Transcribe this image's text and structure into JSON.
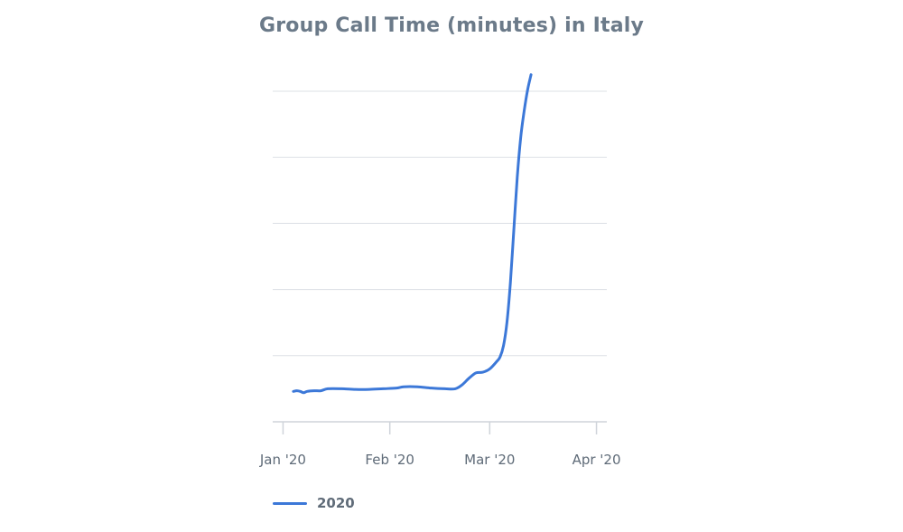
{
  "chart_data": {
    "type": "line",
    "title": "Group Call Time (minutes) in Italy",
    "xlabel": "",
    "ylabel": "",
    "x_axis_type": "date",
    "x_ticks": [
      {
        "label": "Jan '20",
        "date": "2020-01-01"
      },
      {
        "label": "Feb '20",
        "date": "2020-02-01"
      },
      {
        "label": "Mar '20",
        "date": "2020-03-01"
      },
      {
        "label": "Apr '20",
        "date": "2020-04-01"
      }
    ],
    "xlim": [
      "2019-12-29",
      "2020-04-04"
    ],
    "ylim": [
      0,
      5
    ],
    "y_gridlines": [
      1,
      2,
      3,
      4,
      5
    ],
    "y_tick_labels_shown": false,
    "grid": true,
    "legend_position": "bottom-left",
    "series": [
      {
        "name": "2020",
        "color": "#3c78d8",
        "points": [
          {
            "x": "2020-01-04",
            "y": 0.46
          },
          {
            "x": "2020-01-05",
            "y": 0.47
          },
          {
            "x": "2020-01-06",
            "y": 0.46
          },
          {
            "x": "2020-01-07",
            "y": 0.44
          },
          {
            "x": "2020-01-08",
            "y": 0.46
          },
          {
            "x": "2020-01-10",
            "y": 0.47
          },
          {
            "x": "2020-01-12",
            "y": 0.47
          },
          {
            "x": "2020-01-14",
            "y": 0.5
          },
          {
            "x": "2020-01-18",
            "y": 0.5
          },
          {
            "x": "2020-01-22",
            "y": 0.49
          },
          {
            "x": "2020-01-26",
            "y": 0.49
          },
          {
            "x": "2020-01-30",
            "y": 0.5
          },
          {
            "x": "2020-02-03",
            "y": 0.51
          },
          {
            "x": "2020-02-05",
            "y": 0.53
          },
          {
            "x": "2020-02-09",
            "y": 0.53
          },
          {
            "x": "2020-02-13",
            "y": 0.51
          },
          {
            "x": "2020-02-17",
            "y": 0.5
          },
          {
            "x": "2020-02-20",
            "y": 0.5
          },
          {
            "x": "2020-02-22",
            "y": 0.56
          },
          {
            "x": "2020-02-24",
            "y": 0.66
          },
          {
            "x": "2020-02-26",
            "y": 0.74
          },
          {
            "x": "2020-02-28",
            "y": 0.75
          },
          {
            "x": "2020-03-01",
            "y": 0.8
          },
          {
            "x": "2020-03-03",
            "y": 0.91
          },
          {
            "x": "2020-03-04",
            "y": 0.98
          },
          {
            "x": "2020-03-05",
            "y": 1.15
          },
          {
            "x": "2020-03-06",
            "y": 1.5
          },
          {
            "x": "2020-03-07",
            "y": 2.1
          },
          {
            "x": "2020-03-08",
            "y": 2.9
          },
          {
            "x": "2020-03-09",
            "y": 3.7
          },
          {
            "x": "2020-03-10",
            "y": 4.3
          },
          {
            "x": "2020-03-11",
            "y": 4.7
          },
          {
            "x": "2020-03-12",
            "y": 5.02
          },
          {
            "x": "2020-03-13",
            "y": 5.25
          }
        ]
      }
    ]
  }
}
